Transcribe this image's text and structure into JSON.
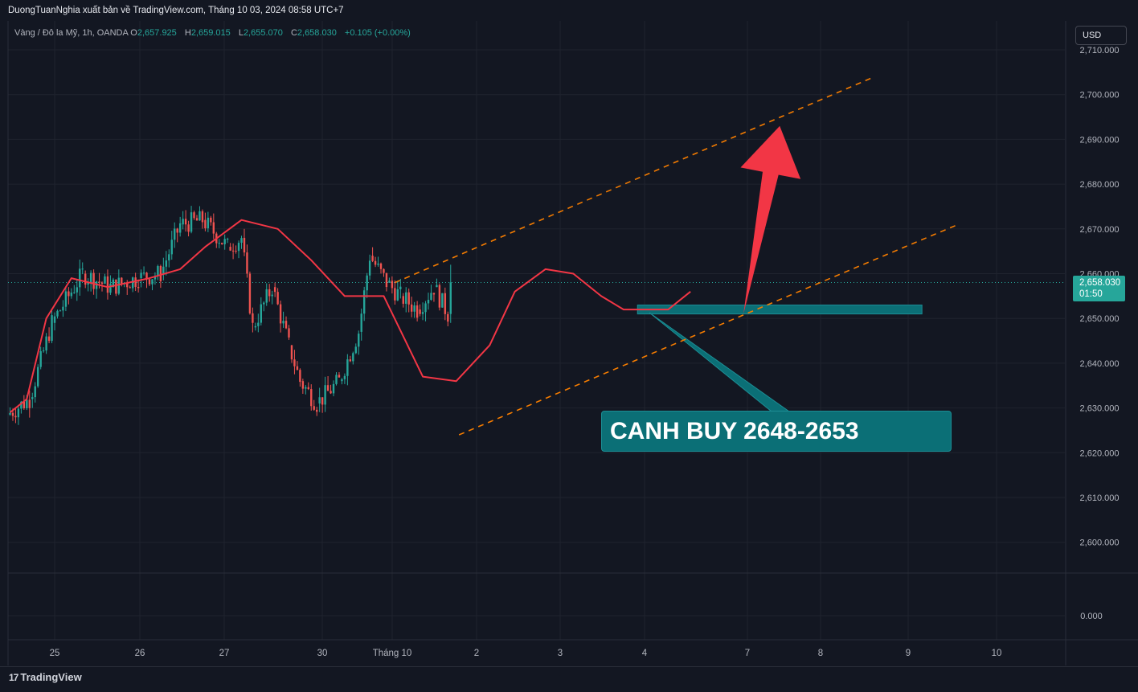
{
  "header": {
    "publish_text": "DuongTuanNghia xuất bản về TradingView.com, Tháng 10 03, 2024 08:58 UTC+7"
  },
  "legend": {
    "symbol": "Vàng / Đô la Mỹ, 1h, OANDA",
    "o_label": "O",
    "o_value": "2,657.925",
    "h_label": "H",
    "h_value": "2,659.015",
    "l_label": "L",
    "l_value": "2,655.070",
    "c_label": "C",
    "c_value": "2,658.030",
    "change": "+0.105 (+0.00%)"
  },
  "currency_button": "USD",
  "price_tag": {
    "price": "2,658.030",
    "countdown": "01:50"
  },
  "annotation": {
    "text": "CANH BUY 2648-2653"
  },
  "footer": {
    "logo_mark": "17",
    "logo_text": "TradingView"
  },
  "colors": {
    "background": "#131722",
    "grid": "#1f232e",
    "bull": "#26a69a",
    "bear": "#ef5350",
    "ma": "#f23645",
    "channel": "#f57c00",
    "arrow": "#f23645",
    "zone": "#0b6f76"
  },
  "chart_data": {
    "type": "candlestick",
    "symbol": "XAUUSD",
    "timeframe": "1h",
    "y_axis": {
      "ylim": [
        2600,
        2710
      ],
      "ticks": [
        "2,710.000",
        "2,700.000",
        "2,690.000",
        "2,680.000",
        "2,670.000",
        "2,660.000",
        "2,650.000",
        "2,640.000",
        "2,630.000",
        "2,620.000",
        "2,610.000",
        "2,600.000"
      ],
      "indicator_tick": "0.000"
    },
    "x_axis": {
      "ticks": [
        "25",
        "26",
        "27",
        "30",
        "Tháng 10",
        "2",
        "3",
        "4",
        "7",
        "8",
        "9",
        "10"
      ]
    },
    "current_price": 2658.03,
    "grid": true,
    "anchors": [
      [
        2628.5,
        2636,
        2624,
        2632,
        8
      ],
      [
        2632,
        2652,
        2630,
        2649,
        8
      ],
      [
        2649,
        2669,
        2645,
        2660,
        11
      ],
      [
        2660,
        2662,
        2653,
        2657,
        10
      ],
      [
        2657,
        2663,
        2655,
        2659,
        10
      ],
      [
        2659,
        2662,
        2656,
        2660,
        8
      ],
      [
        2660,
        2686,
        2657,
        2671,
        7
      ],
      [
        2671,
        2678,
        2667,
        2672,
        8
      ],
      [
        2672,
        2675,
        2663,
        2666,
        9
      ],
      [
        2666,
        2674,
        2661,
        2668,
        5
      ],
      [
        2668,
        2670,
        2645,
        2648,
        4
      ],
      [
        2648,
        2666,
        2644,
        2657,
        7
      ],
      [
        2657,
        2658,
        2640,
        2644,
        6
      ],
      [
        2644,
        2646,
        2630,
        2636,
        4
      ],
      [
        2636,
        2639,
        2625,
        2631,
        6
      ],
      [
        2631,
        2638,
        2628,
        2636,
        8
      ],
      [
        2636,
        2650,
        2634,
        2647,
        7
      ],
      [
        2647,
        2672,
        2645,
        2664,
        4
      ],
      [
        2664,
        2671,
        2655,
        2658,
        6
      ],
      [
        2658,
        2663,
        2650,
        2655,
        5
      ],
      [
        2655,
        2657,
        2644,
        2652,
        6
      ],
      [
        2652,
        2663,
        2648,
        2657,
        6
      ],
      [
        2657,
        2661,
        2641,
        2651,
        5
      ],
      [
        2651,
        2662,
        2649,
        2658.03,
        0
      ]
    ],
    "moving_average": [
      [
        0,
        2629
      ],
      [
        6,
        2632
      ],
      [
        13,
        2650
      ],
      [
        22,
        2659
      ],
      [
        35,
        2657
      ],
      [
        50,
        2659
      ],
      [
        61,
        2661
      ],
      [
        70,
        2666
      ],
      [
        83,
        2672
      ],
      [
        96,
        2670
      ],
      [
        108,
        2663
      ],
      [
        120,
        2655
      ],
      [
        134,
        2655
      ],
      [
        148,
        2637
      ],
      [
        160,
        2636
      ],
      [
        172,
        2644
      ],
      [
        181,
        2656
      ],
      [
        192,
        2661
      ],
      [
        202,
        2660
      ],
      [
        212,
        2655
      ],
      [
        220,
        2652
      ],
      [
        228,
        2652
      ],
      [
        236,
        2652
      ],
      [
        244,
        2656
      ]
    ],
    "channel": {
      "upper": {
        "from": [
          161,
          2624
        ],
        "to": [
          340,
          2671
        ]
      },
      "lower": {
        "from": [
          138,
          2658
        ],
        "to": [
          310,
          2704
        ]
      }
    },
    "buy_zone": {
      "low": 2651,
      "high": 2653,
      "from_bar": 225,
      "to_bar": 327
    },
    "arrow": {
      "from": [
        263,
        2651
      ],
      "to": [
        276,
        2693
      ]
    }
  }
}
